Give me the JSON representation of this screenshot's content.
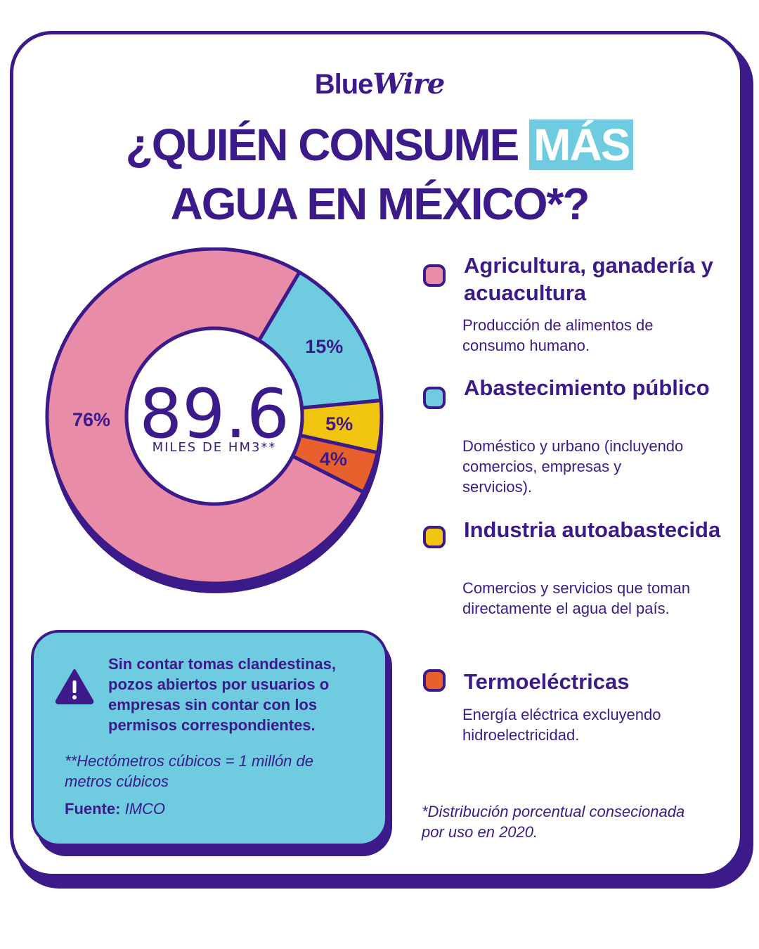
{
  "brand": {
    "logo_part1": "Blue",
    "logo_part2": "Wire"
  },
  "title": {
    "line1_pre": "¿QUIÉN CONSUME",
    "line1_highlight": "MÁS",
    "line2": "AGUA EN MÉXICO*?"
  },
  "center": {
    "value": "89.6",
    "unit": "MILES DE HM3**"
  },
  "colors": {
    "primary": "#3c1a8a",
    "pink": "#e98ca8",
    "blue": "#6fcbe0",
    "yellow": "#f1c40f",
    "orange": "#e8612c"
  },
  "chart_data": {
    "type": "pie",
    "subtype": "donut",
    "total": 89.6,
    "total_unit": "MILES DE HM3**",
    "slices": [
      {
        "label": "Agricultura, ganadería y acuacultura",
        "value": 76,
        "display": "76%",
        "color": "#e98ca8"
      },
      {
        "label": "Abastecimiento público",
        "value": 15,
        "display": "15%",
        "color": "#6fcbe0"
      },
      {
        "label": "Industria autoabastecida",
        "value": 5,
        "display": "5%",
        "color": "#f1c40f"
      },
      {
        "label": "Termoeléctricas",
        "value": 4,
        "display": "4%",
        "color": "#e8612c"
      }
    ]
  },
  "legend": [
    {
      "name": "Agricultura, ganadería y acuacultura",
      "desc": "Producción de alimentos de consumo humano.",
      "color": "#e98ca8"
    },
    {
      "name": "Abastecimiento público",
      "desc": "Doméstico y urbano (incluyendo comercios, empresas y servicios).",
      "color": "#6fcbe0"
    },
    {
      "name": "Industria autoabastecida",
      "desc": "Comercios y servicios que toman directamente el agua del país.",
      "color": "#f1c40f"
    },
    {
      "name": "Termoeléctricas",
      "desc": "Energía eléctrica excluyendo hidroelectricidad.",
      "color": "#e8612c"
    }
  ],
  "note": {
    "warning_text": "Sin contar tomas clandestinas, pozos abiertos por usuarios o empresas sin contar con los permisos correspondientes.",
    "footnote": "**Hectómetros cúbicos = 1 millón de metros cúbicos",
    "source_label": "Fuente:",
    "source_value": "IMCO"
  },
  "footnote_right": "*Distribución porcentual consecionada por uso en 2020."
}
